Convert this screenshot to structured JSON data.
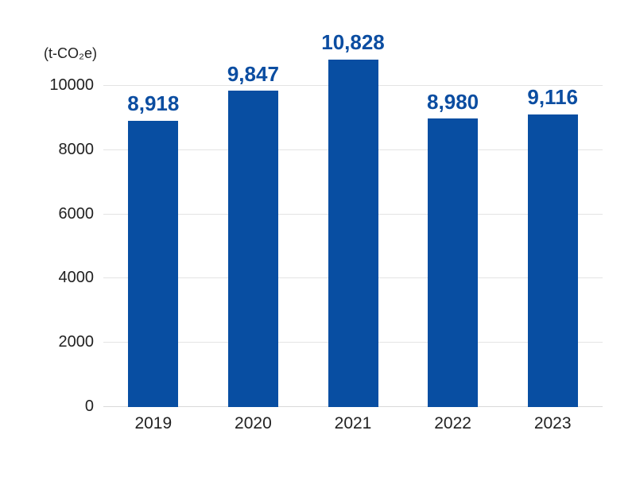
{
  "chart_data": {
    "type": "bar",
    "title": "",
    "unit_label": "(t-CO₂e)",
    "categories": [
      "2019",
      "2020",
      "2021",
      "2022",
      "2023"
    ],
    "values": [
      8918,
      9847,
      10828,
      8980,
      9116
    ],
    "value_labels": [
      "8,918",
      "9,847",
      "10,828",
      "8,980",
      "9,116"
    ],
    "xlabel": "",
    "ylabel": "t-CO2e",
    "y_ticks": [
      0,
      2000,
      4000,
      6000,
      8000,
      10000
    ],
    "y_tick_labels": [
      "0",
      "2000",
      "4000",
      "6000",
      "8000",
      "10000"
    ],
    "ylim": [
      0,
      11000
    ],
    "grid": "horizontal-only",
    "legend": "none",
    "colors": {
      "bar": "#084ea2",
      "value_label": "#0b4da1",
      "axis_text": "#222222",
      "gridline": "#e4e4e4",
      "background": "#ffffff"
    }
  }
}
